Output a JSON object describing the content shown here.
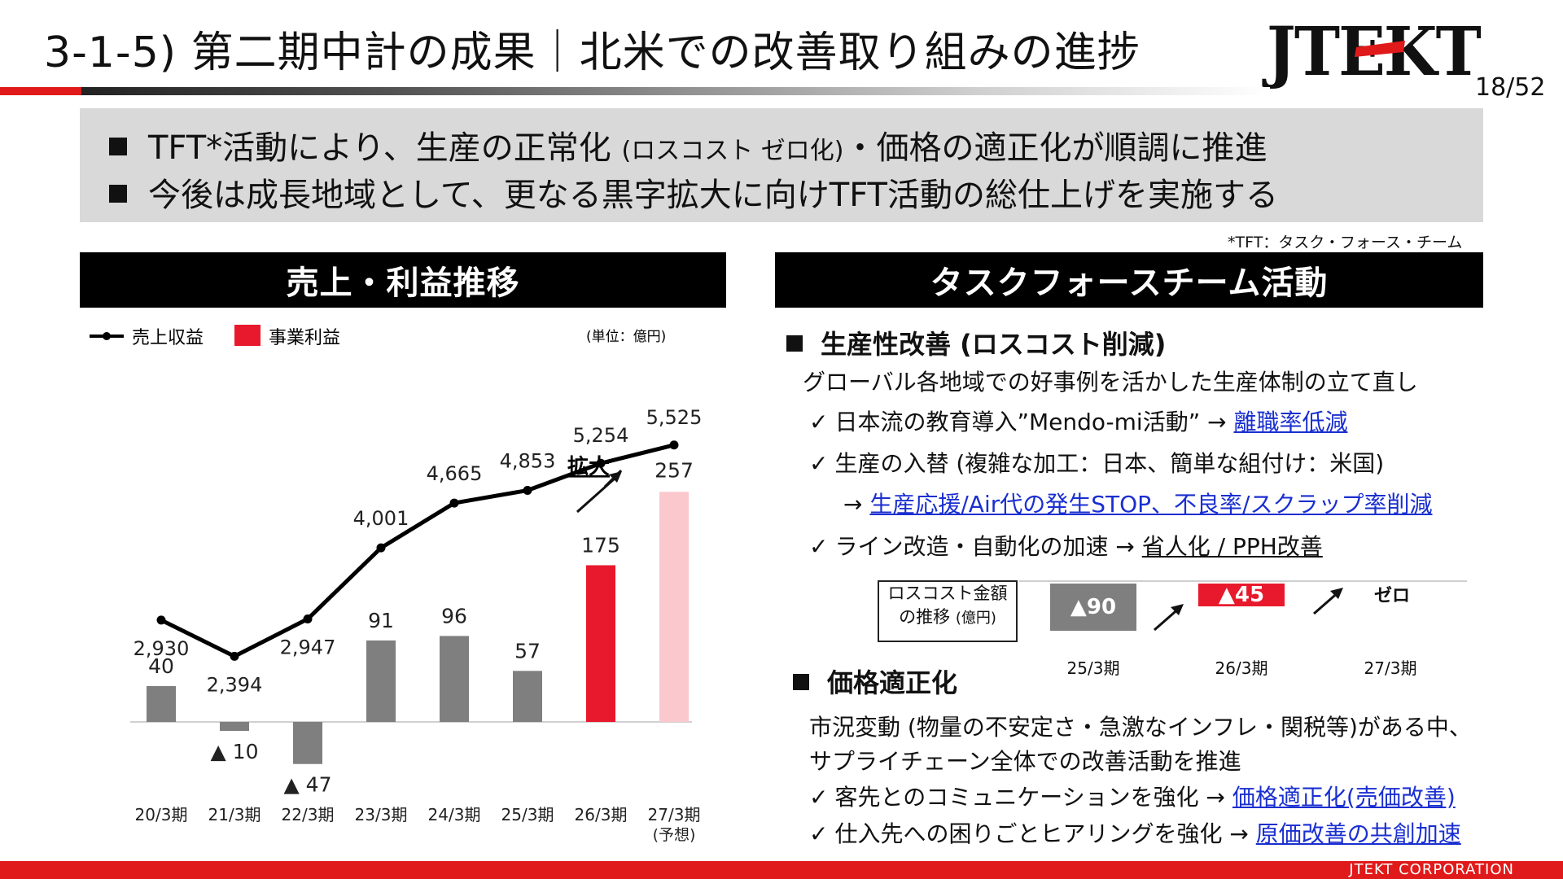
{
  "header": {
    "title": "3-1-5) 第二期中計の成果｜北米での改善取り組みの進捗",
    "logo_text": "JTEKT",
    "page": "18/52"
  },
  "summary": {
    "line1_a": "TFT*活動により、生産の正常化",
    "line1_small": "(ロスコスト ゼロ化)",
    "line1_b": "・価格の適正化が順調に推進",
    "line2": "今後は成長地域として、更なる黒字拡大に向けTFT活動の総仕上げを実施する",
    "note": "*TFT：タスク・フォース・チーム"
  },
  "left_panel": {
    "title": "売上・利益推移",
    "legend_revenue": "売上収益",
    "legend_profit": "事業利益",
    "unit": "(単位：億円)",
    "expand_label": "拡大"
  },
  "chart_data": {
    "type": "bar",
    "categories": [
      "20/3期",
      "21/3期",
      "22/3期",
      "23/3期",
      "24/3期",
      "25/3期",
      "26/3期",
      "27/3期"
    ],
    "category_sub": [
      "",
      "",
      "",
      "",
      "",
      "",
      "",
      "(予想)"
    ],
    "series": [
      {
        "name": "売上収益",
        "type": "line",
        "values": [
          2930,
          2394,
          2947,
          4001,
          4665,
          4853,
          5254,
          5525
        ],
        "labels": [
          "2,930",
          "2,394",
          "2,947",
          "4,001",
          "4,665",
          "4,853",
          "5,254",
          "5,525"
        ]
      },
      {
        "name": "事業利益",
        "type": "bar",
        "values": [
          40,
          -10,
          -47,
          91,
          96,
          57,
          175,
          257
        ],
        "labels": [
          "40",
          "▲ 10",
          "▲ 47",
          "91",
          "96",
          "57",
          "175",
          "257"
        ]
      }
    ],
    "colors": {
      "line": "#000000",
      "bar": "#7f7f7f",
      "highlight": "#e8192c",
      "forecast": "#fbc9cd"
    }
  },
  "right_panel": {
    "title": "タスクフォースチーム活動",
    "sec1_title": "生産性改善 (ロスコスト削減)",
    "sec1_intro": "グローバル各地域での好事例を活かした生産体制の立て直し",
    "item1_text": "日本流の教育導入”Mendo-mi活動” →",
    "item1_link": "離職率低減",
    "item2_text": "生産の入替 (複雑な加工：日本、簡単な組付け：米国)",
    "item2_arrow": "→",
    "item2_link": "生産応援/Air代の発生STOP、不良率/スクラップ率削減",
    "item3_text": "ライン改造・自動化の加速 →",
    "item3_link": "省人化 / PPH改善",
    "losscost": {
      "box_line1": "ロスコスト金額",
      "box_line2": "の推移",
      "box_unit": "(億円)",
      "bars": [
        {
          "label": "▲90",
          "period": "25/3期",
          "color": "#7f7f7f"
        },
        {
          "label": "▲45",
          "period": "26/3期",
          "color": "#e8192c"
        },
        {
          "label": "ゼロ",
          "period": "27/3期",
          "color": ""
        }
      ]
    },
    "sec2_title": "価格適正化",
    "sec2_line1": "市況変動 (物量の不安定さ・急激なインフレ・関税等)がある中、",
    "sec2_line2": "サプライチェーン全体での改善活動を推進",
    "item4_text": "客先とのコミュニケーションを強化 →",
    "item4_link": "価格適正化(売価改善)",
    "item5_text": "仕入先への困りごとヒアリングを強化 →",
    "item5_link": "原価改善の共創加速"
  },
  "footer": {
    "company": "JTEKT CORPORATION"
  }
}
